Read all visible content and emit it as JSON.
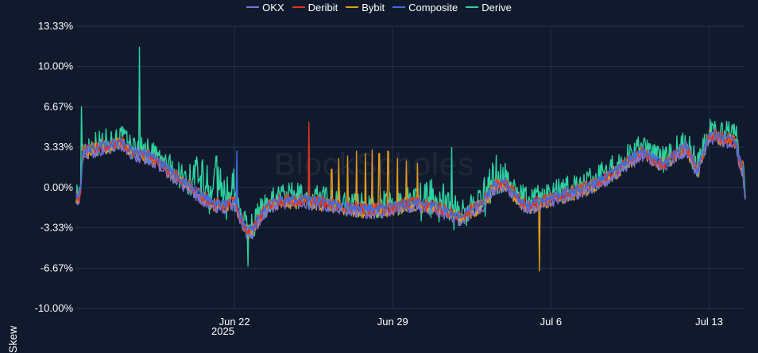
{
  "chart_data": {
    "type": "line",
    "ylabel": "Skew",
    "year_label": "2025",
    "watermark": "BlockScholes",
    "y_ticks": [
      13.33,
      10.0,
      6.67,
      3.33,
      0.0,
      -3.33,
      -6.67,
      -10.0
    ],
    "y_tick_labels": [
      "13.33%",
      "10.00%",
      "6.67%",
      "3.33%",
      "0.00%",
      "-3.33%",
      "-6.67%",
      "-10.00%"
    ],
    "ylim": [
      -10.0,
      13.33
    ],
    "x_ticks": [
      {
        "label": "Jun 22",
        "day": 22
      },
      {
        "label": "Jun 29",
        "day": 29
      },
      {
        "label": "Jul 6",
        "day": 36
      },
      {
        "label": "Jul 13",
        "day": 43
      }
    ],
    "xlim_days": [
      15.0,
      44.6
    ],
    "grid": true,
    "legend_position": "top-center",
    "series": [
      {
        "name": "OKX",
        "color": "#7b6fd6"
      },
      {
        "name": "Deribit",
        "color": "#e0341e"
      },
      {
        "name": "Bybit",
        "color": "#e39b1c"
      },
      {
        "name": "Composite",
        "color": "#3d6fe0"
      },
      {
        "name": "Derive",
        "color": "#2ed1a0"
      }
    ],
    "base_curve": [
      [
        15.0,
        -0.5
      ],
      [
        15.1,
        -1.0
      ],
      [
        15.2,
        0.0
      ],
      [
        15.3,
        3.0
      ],
      [
        15.6,
        3.2
      ],
      [
        16.0,
        3.4
      ],
      [
        16.5,
        3.6
      ],
      [
        17.0,
        3.8
      ],
      [
        17.5,
        3.0
      ],
      [
        18.0,
        2.8
      ],
      [
        18.5,
        2.4
      ],
      [
        19.0,
        1.6
      ],
      [
        19.5,
        0.8
      ],
      [
        20.0,
        0.2
      ],
      [
        20.5,
        -0.6
      ],
      [
        21.0,
        -1.2
      ],
      [
        21.5,
        -1.4
      ],
      [
        22.0,
        -1.0
      ],
      [
        22.2,
        -2.0
      ],
      [
        22.5,
        -3.4
      ],
      [
        22.8,
        -3.5
      ],
      [
        23.1,
        -2.4
      ],
      [
        23.5,
        -1.4
      ],
      [
        24.0,
        -1.0
      ],
      [
        25.0,
        -1.0
      ],
      [
        26.0,
        -1.2
      ],
      [
        27.0,
        -1.6
      ],
      [
        28.0,
        -1.8
      ],
      [
        29.0,
        -1.6
      ],
      [
        30.0,
        -1.2
      ],
      [
        31.0,
        -1.6
      ],
      [
        32.0,
        -2.4
      ],
      [
        33.0,
        -1.2
      ],
      [
        33.5,
        0.2
      ],
      [
        34.0,
        0.5
      ],
      [
        34.5,
        -0.8
      ],
      [
        35.0,
        -1.5
      ],
      [
        36.0,
        -0.8
      ],
      [
        37.0,
        -0.3
      ],
      [
        38.0,
        0.4
      ],
      [
        39.0,
        1.6
      ],
      [
        40.0,
        3.0
      ],
      [
        41.0,
        2.0
      ],
      [
        41.5,
        2.8
      ],
      [
        42.0,
        3.4
      ],
      [
        42.5,
        1.4
      ],
      [
        43.0,
        4.5
      ],
      [
        43.5,
        4.2
      ],
      [
        44.0,
        4.0
      ],
      [
        44.2,
        3.8
      ],
      [
        44.3,
        2.4
      ],
      [
        44.5,
        1.6
      ],
      [
        44.6,
        -0.9
      ]
    ],
    "spikes": [
      {
        "series": "Derive",
        "day": 15.22,
        "value": 6.67
      },
      {
        "series": "Derive",
        "day": 17.8,
        "value": 11.6
      },
      {
        "series": "Deribit",
        "day": 25.3,
        "value": 5.4
      },
      {
        "series": "Bybit",
        "day": 26.3,
        "value": 1.5
      },
      {
        "series": "Bybit",
        "day": 26.6,
        "value": 2.4
      },
      {
        "series": "Bybit",
        "day": 27.0,
        "value": 2.6
      },
      {
        "series": "Bybit",
        "day": 27.4,
        "value": 3.0
      },
      {
        "series": "Bybit",
        "day": 27.8,
        "value": 2.8
      },
      {
        "series": "Bybit",
        "day": 28.1,
        "value": 3.1
      },
      {
        "series": "Bybit",
        "day": 28.4,
        "value": 2.8
      },
      {
        "series": "Bybit",
        "day": 28.8,
        "value": 3.0
      },
      {
        "series": "Bybit",
        "day": 29.2,
        "value": 2.4
      },
      {
        "series": "Bybit",
        "day": 29.6,
        "value": 2.2
      },
      {
        "series": "Bybit",
        "day": 30.1,
        "value": 2.0
      },
      {
        "series": "Derive",
        "day": 31.6,
        "value": 3.3
      },
      {
        "series": "Bybit",
        "day": 35.5,
        "value": -6.9
      },
      {
        "series": "Derive",
        "day": 20.6,
        "value": 2.3
      },
      {
        "series": "Derive",
        "day": 21.2,
        "value": 2.6
      },
      {
        "series": "Composite",
        "day": 22.1,
        "value": 3.0
      },
      {
        "series": "Derive",
        "day": 22.6,
        "value": -6.5
      }
    ]
  }
}
